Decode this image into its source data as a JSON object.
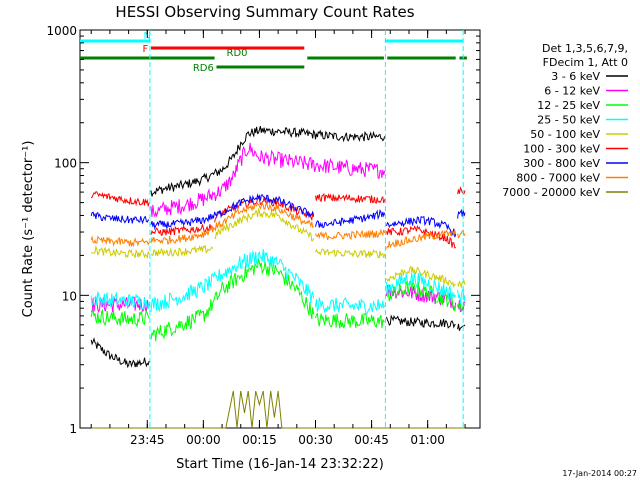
{
  "chart_data": {
    "type": "line",
    "title": "HESSI Observing Summary Count Rates",
    "xlabel": "Start Time (16-Jan-14 23:32:22)",
    "ylabel": "Count Rate (s⁻¹ detector⁻¹)",
    "y_scale": "log",
    "ylim": [
      1,
      1000
    ],
    "x_range_minutes": [
      -33,
      74
    ],
    "x_ticks": [
      {
        "label": "23:45",
        "t": -15
      },
      {
        "label": "00:00",
        "t": 0
      },
      {
        "label": "00:15",
        "t": 15
      },
      {
        "label": "00:30",
        "t": 30
      },
      {
        "label": "00:45",
        "t": 45
      },
      {
        "label": "01:00",
        "t": 60
      }
    ],
    "y_ticks": [
      {
        "label": "1",
        "v": 1
      },
      {
        "label": "10",
        "v": 10
      },
      {
        "label": "100",
        "v": 100
      },
      {
        "label": "1000",
        "v": 1000
      }
    ],
    "legend": {
      "placement": "right",
      "header": [
        "Det 1,3,5,6,7,9,",
        "FDecim 1, Att 0"
      ]
    },
    "series": [
      {
        "name": "3 - 6 keV",
        "color": "#000000",
        "segments": [
          {
            "x": [
              -30,
              -25,
              -20,
              -14.5
            ],
            "y": [
              4.5,
              3.5,
              3.0,
              3.2
            ]
          },
          {
            "x": [
              -14,
              -10,
              -5,
              0,
              5,
              8,
              10,
              12,
              15,
              20,
              25,
              30,
              35,
              40,
              45,
              48.5
            ],
            "y": [
              60,
              64,
              68,
              75,
              88,
              110,
              140,
              165,
              175,
              172,
              168,
              162,
              158,
              157,
              156,
              158
            ]
          },
          {
            "x": [
              49,
              55,
              60,
              65,
              67.5
            ],
            "y": [
              6.5,
              6.3,
              6.2,
              6.2,
              6.0
            ]
          },
          {
            "x": [
              68,
              70
            ],
            "y": [
              5.8,
              6.0
            ]
          }
        ]
      },
      {
        "name": "6 - 12 keV",
        "color": "#ff00ff",
        "segments": [
          {
            "x": [
              -30,
              -25,
              -20,
              -14.5
            ],
            "y": [
              8.5,
              8.5,
              8.5,
              8.6
            ]
          },
          {
            "x": [
              -14,
              -10,
              -5,
              0,
              5,
              8,
              10,
              12,
              15,
              20,
              25,
              30,
              35,
              40,
              45,
              48.5
            ],
            "y": [
              42,
              45,
              48,
              53,
              62,
              78,
              105,
              130,
              110,
              105,
              100,
              96,
              93,
              90,
              88,
              87
            ]
          },
          {
            "x": [
              49,
              55,
              60,
              65,
              67.5
            ],
            "y": [
              11,
              10.5,
              10,
              9.5,
              8.8
            ]
          },
          {
            "x": [
              68,
              70
            ],
            "y": [
              8.6,
              8.8
            ]
          }
        ]
      },
      {
        "name": "12 - 25 keV",
        "color": "#00ff00",
        "segments": [
          {
            "x": [
              -30,
              -25,
              -20,
              -14.5
            ],
            "y": [
              7,
              6.8,
              6.6,
              6.7
            ]
          },
          {
            "x": [
              -14,
              -10,
              -5,
              0,
              3,
              5,
              10,
              15,
              20,
              25,
              29.5
            ],
            "y": [
              5,
              5.5,
              6.2,
              7.0,
              9,
              11,
              14,
              17,
              15,
              11,
              7.2
            ]
          },
          {
            "x": [
              30,
              35,
              40,
              45,
              48.5
            ],
            "y": [
              6.5,
              6.5,
              6.4,
              6.4,
              6.4
            ]
          },
          {
            "x": [
              49,
              52,
              55,
              58,
              61,
              65,
              67.5
            ],
            "y": [
              10,
              10.5,
              11.5,
              11,
              10.3,
              9.5,
              8.5
            ]
          },
          {
            "x": [
              68,
              70
            ],
            "y": [
              8.2,
              8.5
            ]
          }
        ]
      },
      {
        "name": "25 - 50 keV",
        "color": "#00ffff",
        "segments": [
          {
            "x": [
              -30,
              -25,
              -20,
              -14.5
            ],
            "y": [
              9.5,
              9.2,
              9.0,
              9.0
            ]
          },
          {
            "x": [
              -14,
              -10,
              -5,
              0,
              3,
              5,
              10,
              15,
              20,
              25,
              29.5
            ],
            "y": [
              8.5,
              9,
              10,
              11.5,
              13,
              14.5,
              17.5,
              20,
              17.5,
              13,
              9.5
            ]
          },
          {
            "x": [
              30,
              35,
              40,
              45,
              48.5
            ],
            "y": [
              8.5,
              8.4,
              8.3,
              8.3,
              8.4
            ]
          },
          {
            "x": [
              49,
              52,
              55,
              58,
              61,
              65,
              67.5
            ],
            "y": [
              11,
              12.5,
              13.5,
              13,
              12,
              10.8,
              10
            ]
          },
          {
            "x": [
              68,
              70
            ],
            "y": [
              9.8,
              10
            ]
          }
        ]
      },
      {
        "name": "50 - 100 keV",
        "color": "#cccc00",
        "segments": [
          {
            "x": [
              -30,
              -25,
              -20,
              -14.5
            ],
            "y": [
              22,
              21,
              20.5,
              20.5
            ]
          },
          {
            "x": [
              -14,
              -10,
              -5,
              0,
              2.5
            ],
            "y": [
              21,
              21,
              21.5,
              22,
              22.5
            ]
          },
          {
            "x": [
              3,
              5,
              10,
              15,
              20,
              25,
              29.5
            ],
            "y": [
              28,
              31,
              37,
              42,
              40,
              32,
              27
            ]
          },
          {
            "x": [
              30,
              35,
              40,
              45,
              48.5
            ],
            "y": [
              21,
              21,
              20.5,
              20.5,
              20.5
            ]
          },
          {
            "x": [
              49,
              52,
              55,
              58,
              61,
              65,
              67.5
            ],
            "y": [
              13,
              14.5,
              15.5,
              15,
              14,
              13,
              12
            ]
          },
          {
            "x": [
              68,
              70
            ],
            "y": [
              12,
              12
            ]
          }
        ]
      },
      {
        "name": "100 - 300 keV",
        "color": "#ff0000",
        "segments": [
          {
            "x": [
              -30,
              -25,
              -20,
              -14.5
            ],
            "y": [
              58,
              55,
              52,
              50
            ]
          },
          {
            "x": [
              -14,
              -10,
              -5,
              0,
              2.5
            ],
            "y": [
              30,
              30,
              31,
              32,
              32.5
            ]
          },
          {
            "x": [
              3,
              5,
              10,
              15,
              20,
              25,
              29.5
            ],
            "y": [
              38,
              42,
              48,
              52,
              50,
              43,
              39
            ]
          },
          {
            "x": [
              30,
              35,
              40,
              45,
              48.5
            ],
            "y": [
              55,
              54,
              54,
              53,
              53
            ]
          },
          {
            "x": [
              49,
              52,
              55,
              58,
              61,
              65,
              67.5
            ],
            "y": [
              30,
              30,
              31,
              31,
              29,
              27,
              23
            ]
          },
          {
            "x": [
              68,
              70
            ],
            "y": [
              60,
              62
            ]
          }
        ]
      },
      {
        "name": "300 - 800 keV",
        "color": "#0000ff",
        "segments": [
          {
            "x": [
              -30,
              -25,
              -20,
              -14.5
            ],
            "y": [
              40,
              38,
              37,
              37
            ]
          },
          {
            "x": [
              -14,
              -10,
              -5,
              0,
              5,
              10,
              15,
              20,
              25,
              29.5
            ],
            "y": [
              34,
              34,
              35,
              37,
              42,
              50,
              55,
              52,
              45,
              40
            ]
          },
          {
            "x": [
              30,
              35,
              40,
              45,
              48.5
            ],
            "y": [
              34,
              35,
              37,
              39,
              42
            ]
          },
          {
            "x": [
              49,
              52,
              55,
              58,
              61,
              65,
              67.5
            ],
            "y": [
              34,
              35,
              36,
              37,
              36,
              33,
              29
            ]
          },
          {
            "x": [
              68,
              70
            ],
            "y": [
              40,
              42
            ]
          }
        ]
      },
      {
        "name": "800 - 7000 keV",
        "color": "#ff8000",
        "segments": [
          {
            "x": [
              -30,
              -25,
              -20,
              -14.5
            ],
            "y": [
              26,
              25.5,
              25,
              25
            ]
          },
          {
            "x": [
              -14,
              -10,
              -5,
              0,
              5,
              10,
              15,
              20,
              25,
              29.5
            ],
            "y": [
              26,
              26,
              27,
              29,
              35,
              43,
              48,
              45,
              38,
              33
            ]
          },
          {
            "x": [
              30,
              35,
              40,
              45,
              48.5
            ],
            "y": [
              28,
              28,
              28.5,
              29,
              29.5
            ]
          },
          {
            "x": [
              49,
              52,
              55,
              58,
              61,
              65,
              67.5
            ],
            "y": [
              24,
              25,
              26,
              27,
              28,
              29,
              29
            ]
          },
          {
            "x": [
              68,
              70
            ],
            "y": [
              29,
              29
            ]
          }
        ]
      },
      {
        "name": "7000 - 20000 keV",
        "color": "#808000",
        "segments": [
          {
            "x": [
              -30,
              -20,
              -15,
              -10,
              0,
              6,
              8,
              9,
              10,
              11,
              12,
              13,
              14,
              15,
              16,
              17,
              18,
              19,
              20,
              21,
              22,
              30,
              40,
              50,
              60,
              70
            ],
            "y": [
              1,
              1,
              1,
              1,
              1,
              1,
              1.9,
              1,
              1.9,
              1.3,
              1.9,
              1,
              1.9,
              1.5,
              1.9,
              1,
              1.9,
              1.2,
              1.9,
              1,
              1,
              1,
              1,
              1,
              1,
              1
            ]
          }
        ]
      }
    ],
    "annotations": {
      "night_boundaries": [
        -14.3,
        48.7,
        69.5
      ],
      "flags": [
        {
          "label": "N",
          "color": "#00ffff",
          "row": 0,
          "spans": [
            [
              -33,
              -14.3
            ],
            [
              48.7,
              69.5
            ]
          ],
          "label_at": -15
        },
        {
          "label": "F",
          "color": "#ff0000",
          "row": 1,
          "spans": [
            [
              -14,
              27
            ]
          ],
          "label_at": -15.5
        },
        {
          "label": "RD0",
          "color": "#008000",
          "row": 2,
          "spans": [
            [
              -33,
              3
            ],
            [
              27.8,
              48.3
            ],
            [
              49.2,
              67.5
            ],
            [
              68.5,
              70.5
            ]
          ],
          "label_at": 9
        },
        {
          "label": "RD6",
          "color": "#008000",
          "row": 3,
          "spans": [
            [
              3.5,
              27
            ]
          ],
          "label_at": 0
        }
      ]
    },
    "footer_date": "17-Jan-2014 00:27"
  }
}
